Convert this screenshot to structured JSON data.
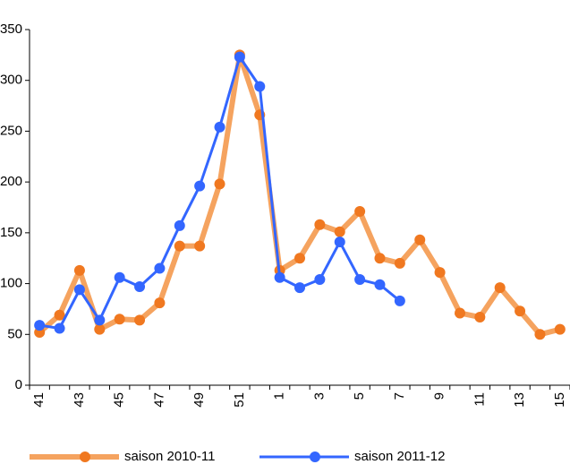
{
  "chart_data": {
    "type": "line",
    "categories": [
      "41",
      null,
      "43",
      null,
      "45",
      null,
      "47",
      null,
      "49",
      null,
      "51",
      null,
      "1",
      null,
      "3",
      null,
      "5",
      null,
      "7",
      null,
      "9",
      null,
      "11",
      null,
      "13",
      null,
      "15"
    ],
    "series": [
      {
        "name": "saison 2010-11",
        "color": "#f07820",
        "values": [
          52,
          69,
          113,
          55,
          65,
          64,
          81,
          137,
          137,
          198,
          325,
          266,
          113,
          125,
          158,
          151,
          171,
          125,
          120,
          143,
          111,
          71,
          67,
          96,
          73,
          50,
          55
        ]
      },
      {
        "name": "saison 2011-12",
        "color": "#3366ff",
        "values": [
          59,
          56,
          94,
          64,
          106,
          97,
          115,
          157,
          196,
          254,
          323,
          294,
          106,
          96,
          104,
          141,
          104,
          99,
          83,
          null,
          null,
          null,
          null,
          null,
          null,
          null,
          null
        ]
      }
    ],
    "ylim": [
      0,
      350
    ],
    "yticks": [
      0,
      50,
      100,
      150,
      200,
      250,
      300,
      350
    ]
  }
}
